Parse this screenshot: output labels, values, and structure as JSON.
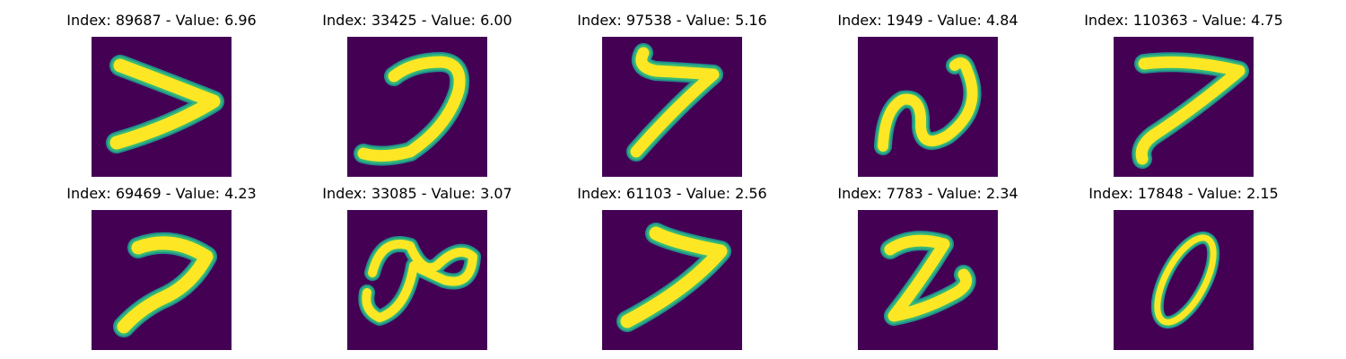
{
  "colors": {
    "background": "#440154",
    "stroke_core": "#fde725",
    "stroke_mid": "#35b779",
    "stroke_edge": "#21918c"
  },
  "panels": [
    {
      "title": "Index: 89687 - Value: 6.96",
      "digit": "7"
    },
    {
      "title": "Index: 33425 - Value: 6.00",
      "digit": "7"
    },
    {
      "title": "Index: 97538 - Value: 5.16",
      "digit": "7"
    },
    {
      "title": "Index: 1949 - Value: 4.84",
      "digit": "2"
    },
    {
      "title": "Index: 110363 - Value: 4.75",
      "digit": "7"
    },
    {
      "title": "Index: 69469 - Value: 4.23",
      "digit": "7"
    },
    {
      "title": "Index: 33085 - Value: 3.07",
      "digit": "9"
    },
    {
      "title": "Index: 61103 - Value: 2.56",
      "digit": "7"
    },
    {
      "title": "Index: 7783 - Value: 2.34",
      "digit": "2"
    },
    {
      "title": "Index: 17848 - Value: 2.15",
      "digit": "0"
    }
  ]
}
